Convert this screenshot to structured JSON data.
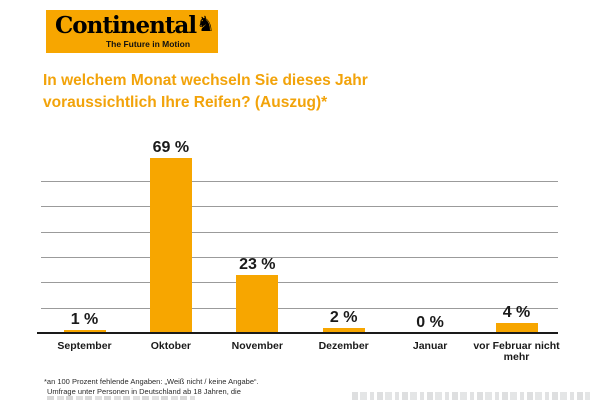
{
  "colors": {
    "accent": "#F7A600",
    "title_text": "#F2A30A",
    "gridline": "#9B9B9B",
    "axis_line": "#1A1A1A",
    "label_text": "#1A1A1A",
    "footnote_text": "#2B2B2B",
    "background": "#FFFFFF"
  },
  "logo": {
    "name": "Continental",
    "horse_glyph": "♞",
    "tagline": "The Future in Motion",
    "background_color": "#F7A600",
    "text_color": "#000000"
  },
  "title": {
    "line1": "In welchem Monat wechseln Sie dieses Jahr",
    "line2": "voraussichtlich Ihre Reifen? (Auszug)*"
  },
  "chart_data": {
    "type": "bar",
    "title": "In welchem Monat wechseln Sie dieses Jahr voraussichtlich Ihre Reifen? (Auszug)*",
    "categories": [
      "September",
      "Oktober",
      "November",
      "Dezember",
      "Januar",
      "vor Februar nicht mehr"
    ],
    "values": [
      1,
      69,
      23,
      2,
      0,
      4
    ],
    "value_labels": [
      "1 %",
      "69 %",
      "23 %",
      "2 %",
      "0 %",
      "4 %"
    ],
    "unit": "%",
    "xlabel": "",
    "ylabel": "",
    "ylim": [
      0,
      72
    ],
    "gridline_values": [
      10,
      20,
      30,
      40,
      50,
      60
    ],
    "grid": "horizontal",
    "legend": "none",
    "bar_color": "#F7A600",
    "value_label_position": "above-bar",
    "tick_labels_shown": false
  },
  "footnote": {
    "line1": "*an 100 Prozent fehlende Angaben: „Weiß nicht / keine Angabe“.",
    "line2": "Umfrage unter Personen in Deutschland ab 18 Jahren, die"
  }
}
